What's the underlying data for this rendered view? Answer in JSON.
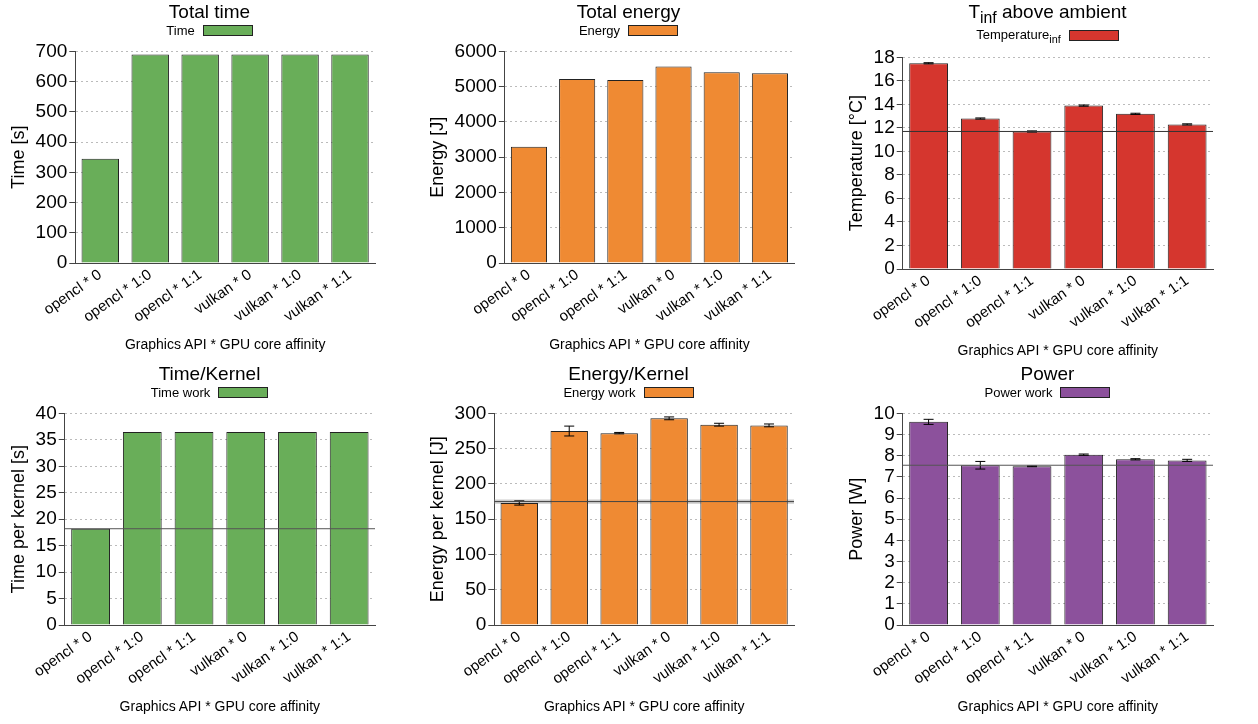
{
  "chart_data": [
    {
      "type": "bar",
      "title": "Total time",
      "xlabel": "Graphics API * GPU core affinity",
      "ylabel": "Time [s]",
      "categories": [
        "opencl * 0",
        "opencl * 1:0",
        "opencl * 1:1",
        "vulkan * 0",
        "vulkan * 1:0",
        "vulkan * 1:1"
      ],
      "series": [
        {
          "name": "Time",
          "color": "#69ae59",
          "values": [
            345,
            690,
            690,
            690,
            690,
            690
          ]
        }
      ],
      "ylim": [
        0,
        700
      ],
      "yticks": [
        0,
        100,
        200,
        300,
        400,
        500,
        600,
        700
      ],
      "grid": "y",
      "legend": "top"
    },
    {
      "type": "bar",
      "title": "Total energy",
      "xlabel": "Graphics API * GPU core affinity",
      "ylabel": "Energy [J]",
      "categories": [
        "opencl * 0",
        "opencl * 1:0",
        "opencl * 1:1",
        "vulkan * 0",
        "vulkan * 1:0",
        "vulkan * 1:1"
      ],
      "series": [
        {
          "name": "Energy",
          "color": "#ef8a33",
          "values": [
            3300,
            5220,
            5190,
            5570,
            5410,
            5380
          ]
        }
      ],
      "ylim": [
        0,
        6000
      ],
      "yticks": [
        0,
        1000,
        2000,
        3000,
        4000,
        5000,
        6000
      ],
      "grid": "y",
      "legend": "top"
    },
    {
      "type": "bar",
      "title": "T$_{inf}$ above ambient",
      "xlabel": "Graphics API * GPU core affinity",
      "ylabel": "Temperature [°C]",
      "categories": [
        "opencl * 0",
        "opencl * 1:0",
        "opencl * 1:1",
        "vulkan * 0",
        "vulkan * 1:0",
        "vulkan * 1:1"
      ],
      "series": [
        {
          "name": "Temperature$_{inf}$",
          "color": "#d5362e",
          "values": [
            17.5,
            12.8,
            11.7,
            13.9,
            13.2,
            12.3
          ],
          "errors": [
            0.05,
            0.05,
            0.05,
            0.05,
            0.05,
            0.05
          ]
        }
      ],
      "ylim": [
        0,
        18
      ],
      "yticks": [
        0,
        2,
        4,
        6,
        8,
        10,
        12,
        14,
        16,
        18
      ],
      "grid": "y",
      "legend": "top",
      "ref_lines": [
        {
          "axis": "y",
          "value": 11.7,
          "color": "#333333"
        }
      ]
    },
    {
      "type": "bar",
      "title": "Time/Kernel",
      "xlabel": "Graphics API * GPU core affinity",
      "ylabel": "Time per kernel [s]",
      "categories": [
        "opencl * 0",
        "opencl * 1:0",
        "opencl * 1:1",
        "vulkan * 0",
        "vulkan * 1:0",
        "vulkan * 1:1"
      ],
      "series": [
        {
          "name": "Time work",
          "color": "#69ae59",
          "values": [
            18.2,
            36.5,
            36.5,
            36.5,
            36.5,
            36.5
          ]
        }
      ],
      "ylim": [
        0,
        40
      ],
      "yticks": [
        0,
        5,
        10,
        15,
        20,
        25,
        30,
        35,
        40
      ],
      "grid": "y",
      "legend": "top",
      "ref_lines": [
        {
          "axis": "y",
          "value": 18.2,
          "color": "#555555"
        }
      ]
    },
    {
      "type": "bar",
      "title": "Energy/Kernel",
      "xlabel": "Graphics API * GPU core affinity",
      "ylabel": "Energy per kernel [J]",
      "categories": [
        "opencl * 0",
        "opencl * 1:0",
        "opencl * 1:1",
        "vulkan * 0",
        "vulkan * 1:0",
        "vulkan * 1:1"
      ],
      "series": [
        {
          "name": "Energy work",
          "color": "#ef8a33",
          "values": [
            173,
            275,
            272,
            293,
            284,
            283
          ],
          "errors": [
            3,
            7,
            1,
            2,
            2,
            2
          ]
        }
      ],
      "ylim": [
        0,
        300
      ],
      "yticks": [
        0,
        50,
        100,
        150,
        200,
        250,
        300
      ],
      "grid": "y",
      "legend": "top",
      "bands": [
        {
          "axis": "y",
          "from": 172,
          "to": 178,
          "color": "#999999"
        }
      ],
      "ref_lines": [
        {
          "axis": "y",
          "value": 175,
          "color": "#444444"
        }
      ]
    },
    {
      "type": "bar",
      "title": "Power",
      "xlabel": "Graphics API * GPU core affinity",
      "ylabel": "Power [W]",
      "categories": [
        "opencl * 0",
        "opencl * 1:0",
        "opencl * 1:1",
        "vulkan * 0",
        "vulkan * 1:0",
        "vulkan * 1:1"
      ],
      "series": [
        {
          "name": "Power work",
          "color": "#8c519c",
          "values": [
            9.6,
            7.55,
            7.5,
            8.05,
            7.83,
            7.78
          ],
          "errors": [
            0.12,
            0.18,
            0.02,
            0.03,
            0.03,
            0.05
          ]
        }
      ],
      "ylim": [
        0,
        10
      ],
      "yticks": [
        0,
        1,
        2,
        3,
        4,
        5,
        6,
        7,
        8,
        9,
        10
      ],
      "grid": "y",
      "legend": "top",
      "ref_lines": [
        {
          "axis": "y",
          "value": 7.55,
          "color": "#555555"
        }
      ]
    }
  ]
}
